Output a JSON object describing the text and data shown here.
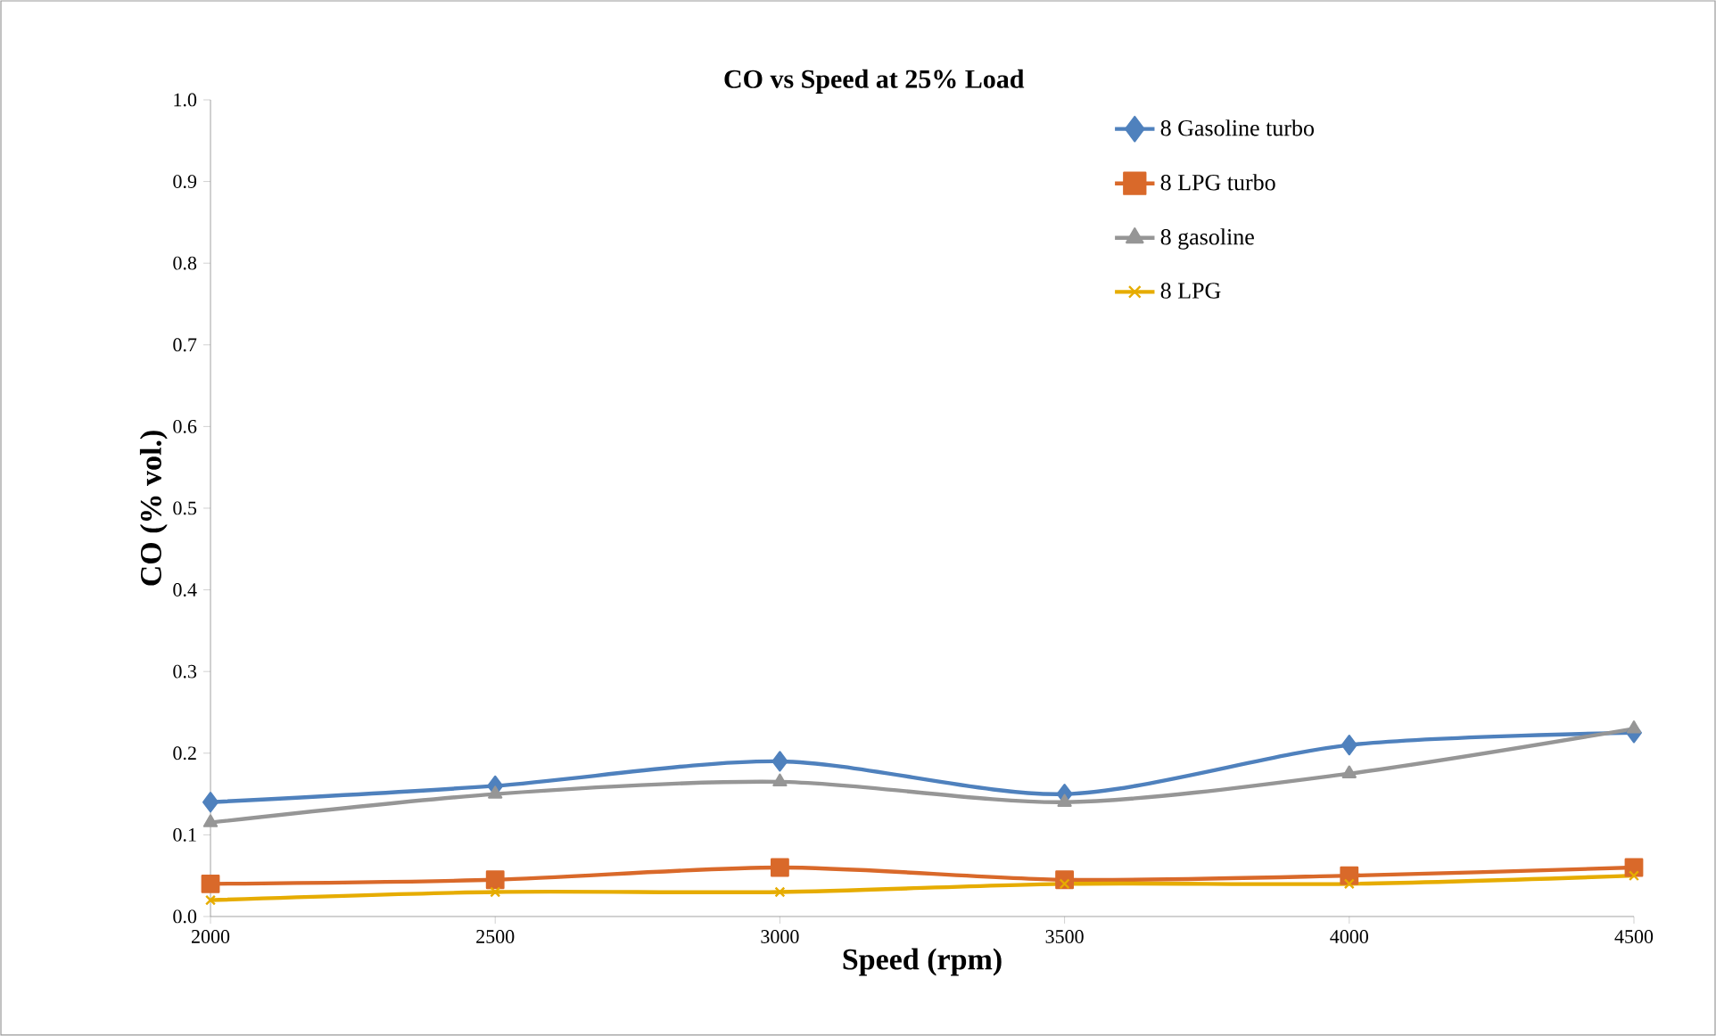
{
  "chart_data": {
    "type": "line",
    "title": "CO vs Speed at 25% Load",
    "xlabel": "Speed (rpm)",
    "ylabel": "CO (%  vol.)",
    "x": [
      2000,
      2500,
      3000,
      3500,
      4000,
      4500
    ],
    "series": [
      {
        "name": "8 Gasoline turbo",
        "color": "#4f81bd",
        "marker": "diamond",
        "values": [
          0.14,
          0.16,
          0.19,
          0.15,
          0.21,
          0.225
        ]
      },
      {
        "name": "8 LPG turbo",
        "color": "#d9692a",
        "marker": "square",
        "values": [
          0.04,
          0.045,
          0.06,
          0.045,
          0.05,
          0.06
        ]
      },
      {
        "name": "8 gasoline",
        "color": "#969696",
        "marker": "triangle",
        "values": [
          0.115,
          0.15,
          0.165,
          0.14,
          0.175,
          0.23
        ]
      },
      {
        "name": "8 LPG",
        "color": "#e6ac00",
        "marker": "cross",
        "values": [
          0.02,
          0.03,
          0.03,
          0.04,
          0.04,
          0.05
        ]
      }
    ],
    "xlim": [
      2000,
      4500
    ],
    "xticks": [
      2000,
      2500,
      3000,
      3500,
      4000,
      4500
    ],
    "ylim": [
      0,
      1
    ],
    "yticks": [
      {
        "value": 0,
        "label": "0.0"
      },
      {
        "value": 0.1,
        "label": "0.1"
      },
      {
        "value": 0.2,
        "label": "0.2"
      },
      {
        "value": 0.3,
        "label": "0.3"
      },
      {
        "value": 0.4,
        "label": "0.4"
      },
      {
        "value": 0.5,
        "label": "0.5"
      },
      {
        "value": 0.6,
        "label": "0.6"
      },
      {
        "value": 0.7,
        "label": "0.7"
      },
      {
        "value": 0.8,
        "label": "0.8"
      },
      {
        "value": 0.9,
        "label": "0.9"
      },
      {
        "value": 1,
        "label": "1.0"
      }
    ],
    "legend": "top right",
    "line_style": "solid"
  }
}
